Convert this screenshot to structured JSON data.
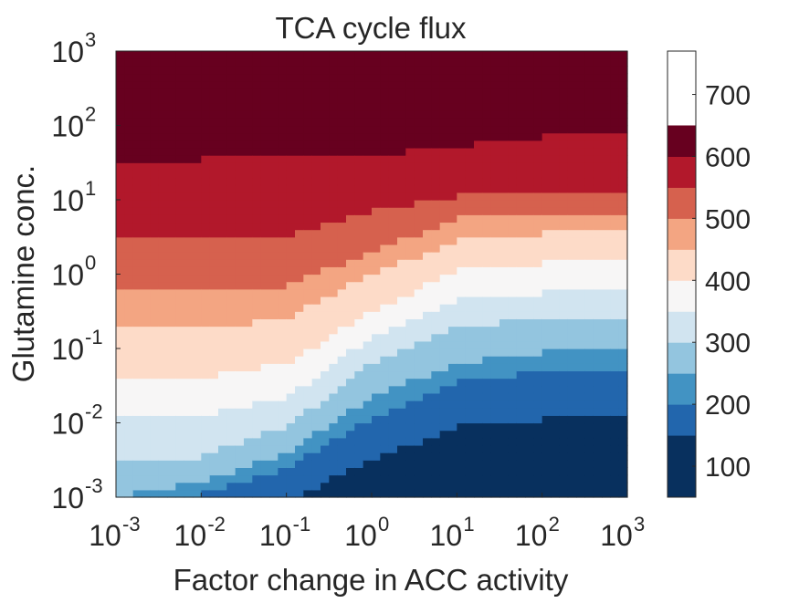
{
  "chart_data": {
    "type": "heatmap",
    "title": "TCA cycle flux",
    "xlabel": "Factor change in ACC activity",
    "ylabel": "Glutamine conc.",
    "x_scale": "log",
    "y_scale": "log",
    "xlim": [
      0.001,
      1000
    ],
    "ylim": [
      0.001,
      1000
    ],
    "x_ticks": [
      {
        "base": "10",
        "exp": "-3"
      },
      {
        "base": "10",
        "exp": "-2"
      },
      {
        "base": "10",
        "exp": "-1"
      },
      {
        "base": "10",
        "exp": "0"
      },
      {
        "base": "10",
        "exp": "1"
      },
      {
        "base": "10",
        "exp": "2"
      },
      {
        "base": "10",
        "exp": "3"
      }
    ],
    "y_ticks": [
      {
        "base": "10",
        "exp": "-3"
      },
      {
        "base": "10",
        "exp": "-2"
      },
      {
        "base": "10",
        "exp": "-1"
      },
      {
        "base": "10",
        "exp": "0"
      },
      {
        "base": "10",
        "exp": "1"
      },
      {
        "base": "10",
        "exp": "2"
      },
      {
        "base": "10",
        "exp": "3"
      }
    ],
    "colorbar": {
      "range": [
        50,
        770
      ],
      "ticks": [
        "100",
        "200",
        "300",
        "400",
        "500",
        "600",
        "700"
      ],
      "tick_values": [
        100,
        200,
        300,
        400,
        500,
        600,
        700
      ],
      "levels": [
        50,
        150,
        200,
        250,
        300,
        350,
        400,
        450,
        500,
        550,
        600,
        650,
        700,
        770
      ],
      "colors": [
        "#08305e",
        "#2266ad",
        "#4293c3",
        "#93c5df",
        "#d1e4f0",
        "#f7f6f6",
        "#fddbc8",
        "#f3a582",
        "#d6614e",
        "#b2182b",
        "#67001f"
      ]
    },
    "contours_log10_glutamine_by_acc": {
      "log10_acc": [
        -3,
        -2,
        -1,
        0,
        1,
        2,
        3
      ],
      "boundaries": [
        {
          "level": 150,
          "values": [
            -3.6,
            -3.4,
            -3.05,
            -2.5,
            -2.05,
            -1.95,
            -1.9
          ]
        },
        {
          "level": 200,
          "values": [
            -3.2,
            -2.95,
            -2.6,
            -1.95,
            -1.45,
            -1.3,
            -1.25
          ]
        },
        {
          "level": 250,
          "values": [
            -3.0,
            -2.8,
            -2.4,
            -1.65,
            -1.2,
            -1.05,
            -1.02
          ]
        },
        {
          "level": 300,
          "values": [
            -2.52,
            -2.45,
            -2.05,
            -1.2,
            -0.7,
            -0.6,
            -0.55
          ]
        },
        {
          "level": 350,
          "values": [
            -1.95,
            -1.9,
            -1.65,
            -0.85,
            -0.35,
            -0.25,
            -0.25
          ]
        },
        {
          "level": 400,
          "values": [
            -1.4,
            -1.38,
            -1.2,
            -0.5,
            0.05,
            0.15,
            0.2
          ]
        },
        {
          "level": 450,
          "values": [
            -0.75,
            -0.72,
            -0.6,
            0.0,
            0.45,
            0.55,
            0.55
          ]
        },
        {
          "level": 500,
          "values": [
            -0.2,
            -0.2,
            -0.15,
            0.3,
            0.75,
            0.82,
            0.85
          ]
        },
        {
          "level": 550,
          "values": [
            0.45,
            0.45,
            0.5,
            0.85,
            1.05,
            1.12,
            1.15
          ]
        },
        {
          "level": 600,
          "values": [
            1.5,
            1.55,
            1.55,
            1.6,
            1.72,
            1.85,
            1.9
          ]
        }
      ]
    }
  }
}
